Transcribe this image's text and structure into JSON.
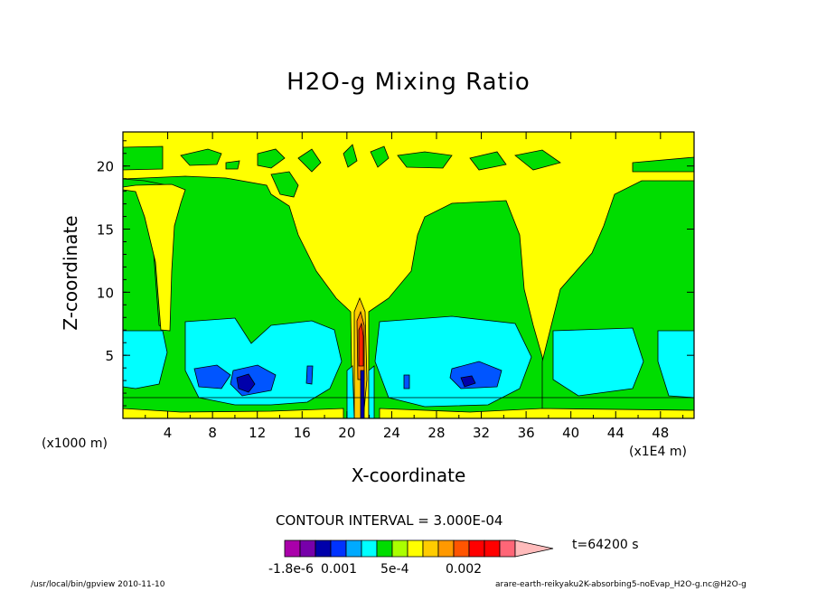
{
  "chart_data": {
    "type": "heatmap",
    "title": "H2O-g Mixing Ratio",
    "xlabel": "X-coordinate",
    "ylabel": "Z-coordinate",
    "x_unit": "(x1E4 m)",
    "y_unit": "(x1000 m)",
    "x_ticks": [
      "4",
      "8",
      "12",
      "16",
      "20",
      "24",
      "28",
      "32",
      "36",
      "40",
      "44",
      "48"
    ],
    "y_ticks": [
      "5",
      "10",
      "15",
      "20"
    ],
    "xlim": [
      0,
      51
    ],
    "ylim": [
      0,
      22.7
    ],
    "contour_interval": "CONTOUR INTERVAL = 3.000E-04",
    "time": "t=64200 s",
    "colorbar_labels": [
      "-1.8e-6",
      "0.001",
      "5e-4",
      "0.002"
    ],
    "colors": {
      "level_0": "#ffff00",
      "level_1": "#00dd00",
      "level_2": "#00ffff",
      "level_3": "#0055ff",
      "level_4": "#0000aa",
      "level_high": "#ff2200"
    }
  },
  "footer": {
    "left": "/usr/local/bin/gpview  2010-11-10",
    "right": "arare-earth-reikyaku2K-absorbing5-noEvap_H2O-g.nc@H2O-g"
  }
}
